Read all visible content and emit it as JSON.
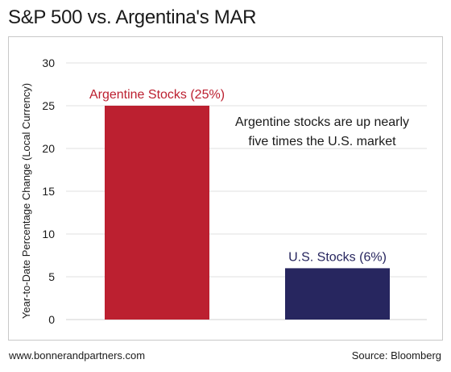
{
  "title": "S&P 500 vs. Argentina's MAR",
  "footer": {
    "source_site": "www.bonnerandpartners.com",
    "source": "Source: Bloomberg"
  },
  "colors": {
    "argentina": "#bc2030",
    "us": "#27265f",
    "grid": "#e2e2e2"
  },
  "chart_data": {
    "type": "bar",
    "categories": [
      "Argentine Stocks",
      "U.S. Stocks"
    ],
    "values": [
      25,
      6
    ],
    "data_labels": [
      "Argentine Stocks (25%)",
      "U.S. Stocks (6%)"
    ],
    "ylabel": "Year-to-Date Percentage Change (Local Currency)",
    "ylim": [
      0,
      30
    ],
    "yticks": [
      0,
      5,
      10,
      15,
      20,
      25,
      30
    ],
    "grid": true,
    "annotation": [
      "Argentine stocks are up nearly",
      "five times the U.S. market"
    ]
  }
}
